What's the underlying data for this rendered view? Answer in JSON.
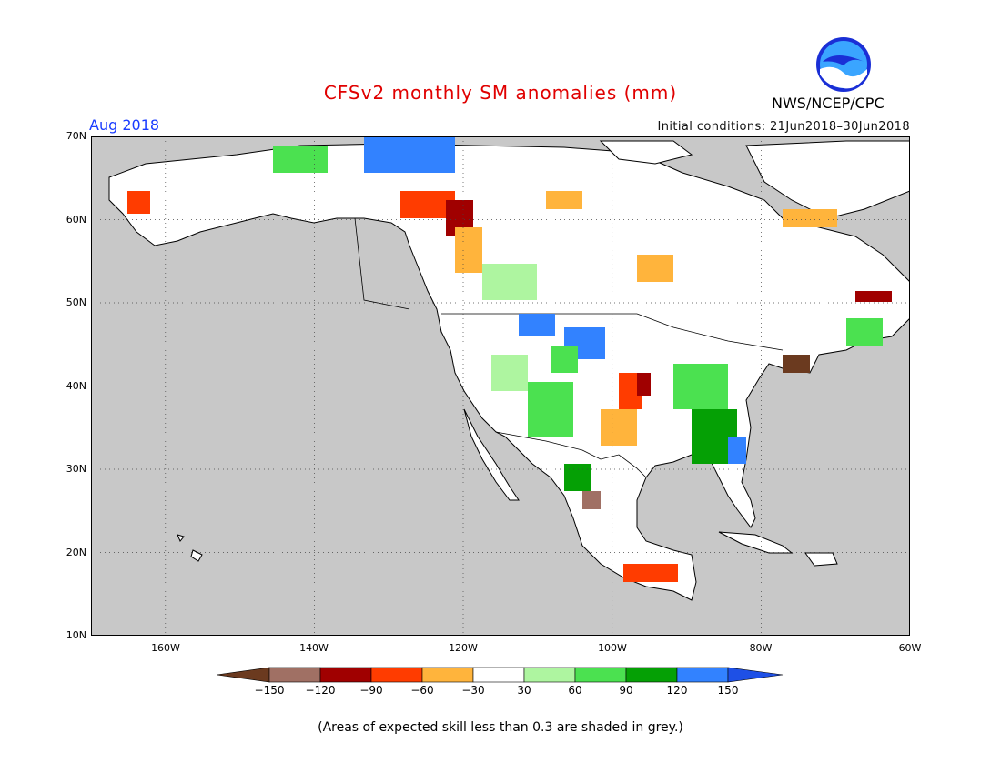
{
  "header": {
    "title": "CFSv2 monthly SM anomalies (mm)",
    "target_month": "Aug 2018",
    "initial_conditions": "Initial conditions: 21Jun2018–30Jun2018",
    "agency": "NWS/NCEP/CPC",
    "logo_text": "NOAA"
  },
  "map": {
    "region": "North America",
    "ocean_color": "#c8c8c8",
    "land_color": "#ffffff",
    "lat_labels": [
      "70N",
      "60N",
      "50N",
      "40N",
      "30N",
      "20N",
      "10N"
    ],
    "lon_labels": [
      "160W",
      "140W",
      "120W",
      "100W",
      "80W",
      "60W"
    ]
  },
  "colorbar": {
    "labels": [
      "−150",
      "−120",
      "−90",
      "−60",
      "−30",
      "30",
      "60",
      "90",
      "120",
      "150"
    ],
    "colors": [
      "#6b3a1f",
      "#a07064",
      "#a00000",
      "#ff3c00",
      "#ffb43c",
      "#ffffff",
      "#aef5a0",
      "#4be150",
      "#05a005",
      "#3282ff",
      "#1e50e6"
    ]
  },
  "footnote": "(Areas of expected skill less than 0.3 are shaded in grey.)"
}
